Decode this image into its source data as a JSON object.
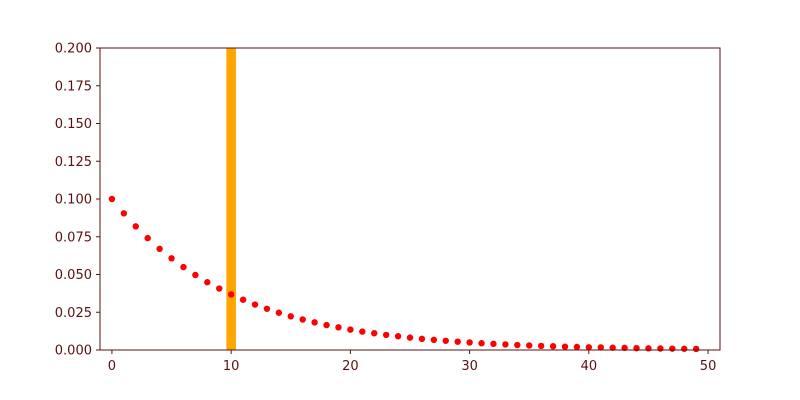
{
  "chart_data": {
    "type": "scatter",
    "title": "",
    "xlabel": "",
    "ylabel": "",
    "xlim": [
      -1,
      51
    ],
    "ylim": [
      0,
      0.2
    ],
    "x_ticks": [
      0,
      10,
      20,
      30,
      40,
      50
    ],
    "x_tick_labels": [
      "0",
      "10",
      "20",
      "30",
      "40",
      "50"
    ],
    "y_ticks": [
      0,
      0.025,
      0.05,
      0.075,
      0.1,
      0.125,
      0.15,
      0.175,
      0.2
    ],
    "y_tick_labels": [
      "0.000",
      "0.025",
      "0.050",
      "0.075",
      "0.100",
      "0.125",
      "0.150",
      "0.175",
      "0.200"
    ],
    "grid": false,
    "legend": "none",
    "highlight_band": {
      "x_from": 9.6,
      "x_to": 10.4,
      "color": "#FFA500"
    },
    "series": [
      {
        "color": "#FF0000",
        "x": [
          0,
          1,
          2,
          3,
          4,
          5,
          6,
          7,
          8,
          9,
          10,
          11,
          12,
          13,
          14,
          15,
          16,
          17,
          18,
          19,
          20,
          21,
          22,
          23,
          24,
          25,
          26,
          27,
          28,
          29,
          30,
          31,
          32,
          33,
          34,
          35,
          36,
          37,
          38,
          39,
          40,
          41,
          42,
          43,
          44,
          45,
          46,
          47,
          48,
          49
        ],
        "y": [
          0.1,
          0.0905,
          0.0819,
          0.0741,
          0.067,
          0.0607,
          0.0549,
          0.0497,
          0.0449,
          0.0407,
          0.0368,
          0.0333,
          0.0301,
          0.0273,
          0.0247,
          0.0223,
          0.0202,
          0.0183,
          0.0165,
          0.015,
          0.0135,
          0.0122,
          0.0111,
          0.01,
          0.0091,
          0.0082,
          0.0074,
          0.0067,
          0.0061,
          0.0055,
          0.005,
          0.0045,
          0.0041,
          0.0037,
          0.0033,
          0.003,
          0.0027,
          0.0025,
          0.0022,
          0.002,
          0.0018,
          0.0017,
          0.0015,
          0.0014,
          0.0012,
          0.0011,
          0.001,
          0.0009,
          0.0008,
          0.0007
        ]
      }
    ]
  }
}
